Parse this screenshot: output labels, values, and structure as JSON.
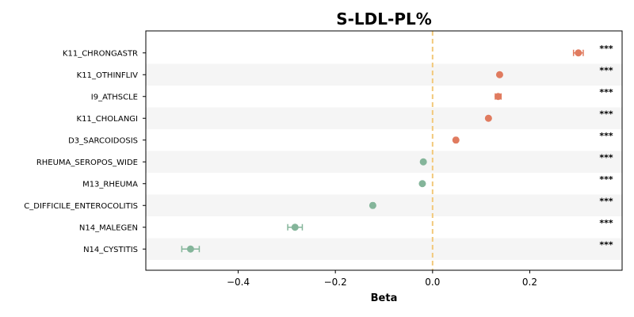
{
  "chart_data": {
    "type": "scatter",
    "title": "S-LDL-PL%",
    "xlabel": "Beta",
    "ylabel": "",
    "xlim": [
      -0.59,
      0.39
    ],
    "xticks": [
      -0.4,
      -0.2,
      0.0,
      0.2
    ],
    "xtick_labels": [
      "−0.4",
      "−0.2",
      "0.0",
      "0.2"
    ],
    "reference_line": 0.0,
    "grid": false,
    "significance_label": "***",
    "colors": {
      "positive": "#e07b5f",
      "negative": "#84b59a",
      "reference": "#f2c87a",
      "band": "#f5f5f5"
    },
    "points": [
      {
        "label": "K11_CHRONGASTR",
        "beta": 0.3,
        "ci_low": 0.29,
        "ci_high": 0.31,
        "sig": "***"
      },
      {
        "label": "K11_OTHINFLIV",
        "beta": 0.138,
        "ci_low": 0.136,
        "ci_high": 0.14,
        "sig": "***"
      },
      {
        "label": "I9_ATHSCLE",
        "beta": 0.135,
        "ci_low": 0.129,
        "ci_high": 0.141,
        "sig": "***"
      },
      {
        "label": "K11_CHOLANGI",
        "beta": 0.115,
        "ci_low": 0.113,
        "ci_high": 0.117,
        "sig": "***"
      },
      {
        "label": "D3_SARCOIDOSIS",
        "beta": 0.048,
        "ci_low": 0.045,
        "ci_high": 0.051,
        "sig": "***"
      },
      {
        "label": "RHEUMA_SEROPOS_WIDE",
        "beta": -0.019,
        "ci_low": -0.021,
        "ci_high": -0.017,
        "sig": "***"
      },
      {
        "label": "M13_RHEUMA",
        "beta": -0.021,
        "ci_low": -0.023,
        "ci_high": -0.019,
        "sig": "***"
      },
      {
        "label": "C_DIFFICILE_ENTEROCOLITIS",
        "beta": -0.123,
        "ci_low": -0.126,
        "ci_high": -0.12,
        "sig": "***"
      },
      {
        "label": "N14_MALEGEN",
        "beta": -0.283,
        "ci_low": -0.298,
        "ci_high": -0.268,
        "sig": "***"
      },
      {
        "label": "N14_CYSTITIS",
        "beta": -0.498,
        "ci_low": -0.516,
        "ci_high": -0.48,
        "sig": "***"
      }
    ]
  }
}
